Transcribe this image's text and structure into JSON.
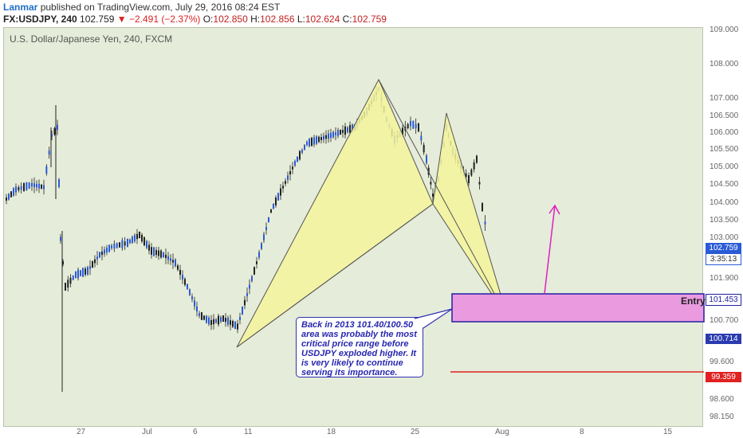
{
  "header": {
    "user": "Lanmar",
    "published": " published on TradingView.com, July 29, 2016 08:24 EST",
    "symbol": "FX:USDJPY, 240",
    "last": " 102.759 ",
    "change": "▼ −2.491 (−2.37%)",
    "o_label": " O:",
    "o_val": "102.850",
    "h_label": " H:",
    "h_val": "102.856",
    "l_label": " L:",
    "l_val": "102.624",
    "c_label": " C:",
    "c_val": "102.759"
  },
  "chart_title": "U.S. Dollar/Japanese Yen, 240, FXCM",
  "y_ticks": [
    "109.000",
    "108.000",
    "107.000",
    "106.500",
    "106.000",
    "105.500",
    "105.000",
    "104.500",
    "104.000",
    "103.500",
    "103.000",
    "101.900",
    "100.700",
    "99.600",
    "99.100",
    "98.600",
    "98.150"
  ],
  "x_ticks": [
    "27",
    "Jul",
    "6",
    "11",
    "18",
    "25",
    "Aug",
    "8",
    "15"
  ],
  "price_boxes": {
    "last": "102.759",
    "countdown": "3:35:13",
    "entry_top": "101.453",
    "entry_bottom": "100.714",
    "stop": "99.359"
  },
  "entry_label": "Entry",
  "annotation": "Back in 2013 101.40/100.50 area was probably the most critical price range before USDJPY exploded higher. It is very likely to continue serving its importance.",
  "colors": {
    "background": "#e5ecd9",
    "candle_up": "#222222",
    "candle_down": "#2a5bd6",
    "pattern_fill": "#f4f49a",
    "entry_zone": "#ea9be0",
    "stop_line": "#e02020",
    "arrow": "#e020c0"
  }
}
